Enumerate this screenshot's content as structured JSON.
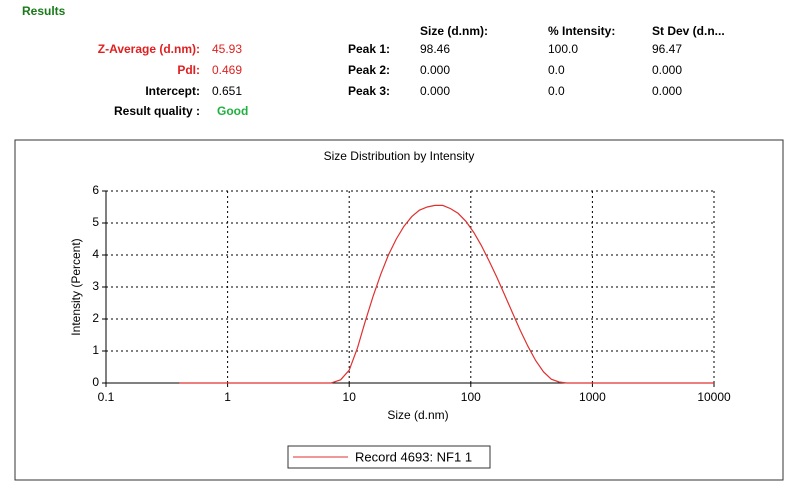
{
  "results": {
    "heading": "Results",
    "summary": [
      {
        "label": "Z-Average (d.nm):",
        "value": "45.93"
      },
      {
        "label": "PdI:",
        "value": "0.469"
      },
      {
        "label": "Intercept:",
        "value": "0.651"
      }
    ],
    "quality": {
      "label": "Result quality :",
      "value": "Good"
    },
    "peaks": {
      "headers": [
        "Size (d.nm):",
        "% Intensity:",
        "St Dev (d.n..."
      ],
      "rows": [
        [
          "Peak 1:",
          "98.46",
          "100.0",
          "96.47"
        ],
        [
          "Peak 2:",
          "0.000",
          "0.0",
          "0.000"
        ],
        [
          "Peak 3:",
          "0.000",
          "0.0",
          "0.000"
        ]
      ]
    }
  },
  "chart_data": {
    "type": "line",
    "title": "Size Distribution by Intensity",
    "x_label": "Size (d.nm)",
    "y_label": "Intensity (Percent)",
    "xscale": "log",
    "grid": true,
    "legend": "bottom",
    "xlim": [
      0.1,
      10000
    ],
    "xticks": [
      0.1,
      1,
      10,
      100,
      1000,
      10000
    ],
    "ylim": [
      0,
      6
    ],
    "yticks": [
      0,
      1,
      2,
      3,
      4,
      5,
      6
    ],
    "series": [
      {
        "name": "Record 4693: NF1 1",
        "color": "#e03030",
        "x": [
          0.4,
          1,
          2,
          4,
          7.1,
          8.5,
          10,
          11.7,
          13.5,
          15.7,
          18.2,
          21,
          24.4,
          28.2,
          32.7,
          37.8,
          43.8,
          50.7,
          58.8,
          68.1,
          78.8,
          91.3,
          106,
          122,
          142,
          164,
          190,
          220,
          255,
          295,
          342,
          396,
          459,
          531,
          615,
          1000,
          2000,
          5000,
          10000
        ],
        "values": [
          0,
          0,
          0,
          0,
          0,
          0.1,
          0.4,
          1.1,
          1.9,
          2.7,
          3.4,
          4.0,
          4.5,
          4.9,
          5.2,
          5.4,
          5.5,
          5.55,
          5.55,
          5.45,
          5.3,
          5.05,
          4.7,
          4.3,
          3.8,
          3.3,
          2.75,
          2.2,
          1.65,
          1.15,
          0.7,
          0.35,
          0.12,
          0.03,
          0,
          0,
          0,
          0,
          0
        ]
      }
    ]
  }
}
